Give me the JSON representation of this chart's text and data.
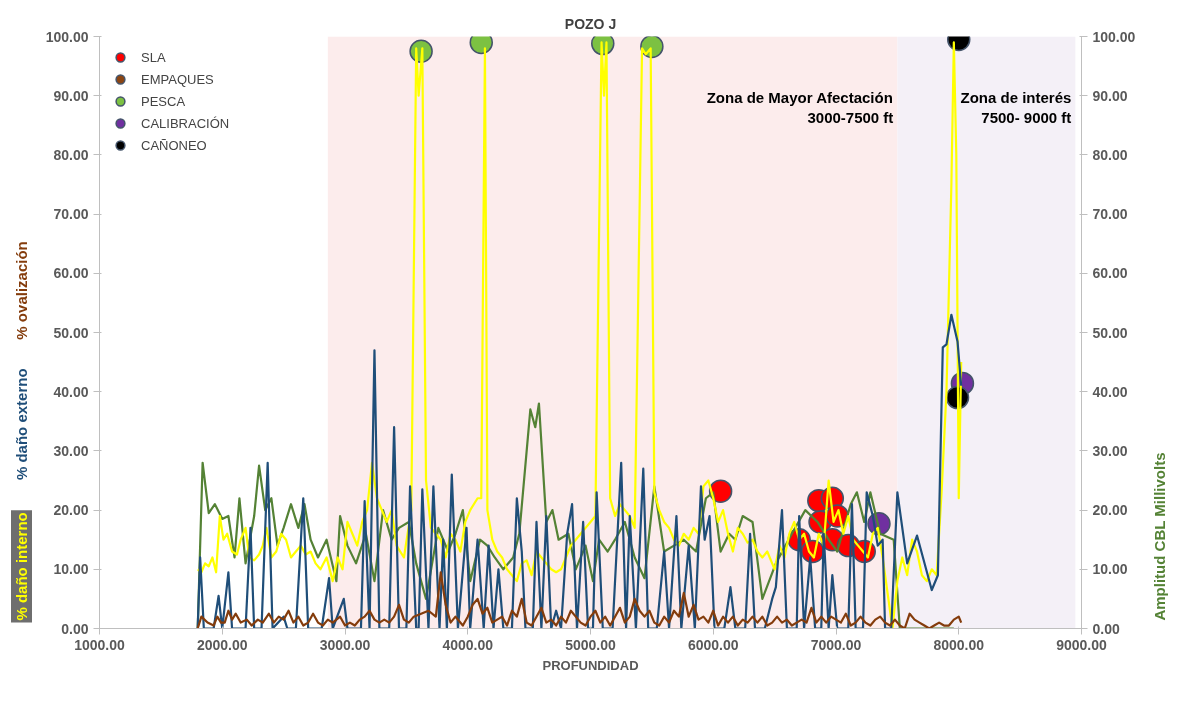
{
  "chart_data": {
    "type": "scatter",
    "title": "POZO J",
    "xlabel": "PROFUNDIDAD",
    "xlim": [
      1000,
      9000
    ],
    "ylim": [
      0,
      100
    ],
    "y2lim": [
      0,
      100
    ],
    "xticks": [
      {
        "value": 1000,
        "label": "1000.00"
      },
      {
        "value": 2000,
        "label": "2000.00"
      },
      {
        "value": 3000,
        "label": "3000.00"
      },
      {
        "value": 4000,
        "label": "4000.00"
      },
      {
        "value": 5000,
        "label": "5000.00"
      },
      {
        "value": 6000,
        "label": "6000.00"
      },
      {
        "value": 7000,
        "label": "7000.00"
      },
      {
        "value": 8000,
        "label": "8000.00"
      },
      {
        "value": 9000,
        "label": "9000.00"
      }
    ],
    "yticks": [
      {
        "value": 0,
        "label": "0.00"
      },
      {
        "value": 10,
        "label": "10.00"
      },
      {
        "value": 20,
        "label": "20.00"
      },
      {
        "value": 30,
        "label": "30.00"
      },
      {
        "value": 40,
        "label": "40.00"
      },
      {
        "value": 50,
        "label": "50.00"
      },
      {
        "value": 60,
        "label": "60.00"
      },
      {
        "value": 70,
        "label": "70.00"
      },
      {
        "value": 80,
        "label": "80.00"
      },
      {
        "value": 90,
        "label": "90.00"
      },
      {
        "value": 100,
        "label": "100.00"
      }
    ],
    "y2ticks": [
      {
        "value": 0,
        "label": "0.00"
      },
      {
        "value": 10,
        "label": "10.00"
      },
      {
        "value": 20,
        "label": "20.00"
      },
      {
        "value": 30,
        "label": "30.00"
      },
      {
        "value": 40,
        "label": "40.00"
      },
      {
        "value": 50,
        "label": "50.00"
      },
      {
        "value": 60,
        "label": "60.00"
      },
      {
        "value": 70,
        "label": "70.00"
      },
      {
        "value": 80,
        "label": "80.00"
      },
      {
        "value": 90,
        "label": "90.00"
      },
      {
        "value": 100,
        "label": "100.00"
      }
    ],
    "grid": false,
    "legend": "top left",
    "line_style": "solid",
    "bands": [
      {
        "axis": "x",
        "from": 2860,
        "to": 7500,
        "label": "Zona de Mayor Afectación\n3000-7500 ft",
        "color": "#fcecec"
      },
      {
        "axis": "x",
        "from": 7500,
        "to": 8950,
        "label": "Zona de interés\n7500- 9000 ft",
        "color": "#f4f0f7"
      }
    ],
    "series": [
      {
        "name": "Amplitud CBL  Millivolts",
        "type": "line",
        "axis": "y2",
        "color": "#548235",
        "x": [
          1800,
          1840,
          1890,
          1940,
          2000,
          2050,
          2100,
          2140,
          2190,
          2260,
          2300,
          2350,
          2400,
          2450,
          2500,
          2560,
          2620,
          2670,
          2720,
          2780,
          2850,
          2930,
          2960,
          3020,
          3090,
          3170,
          3240,
          3310,
          3380,
          3440,
          3520,
          3580,
          3660,
          3760,
          3840,
          3900,
          3960,
          4020,
          4100,
          4160,
          4220,
          4290,
          4370,
          4420,
          4510,
          4550,
          4580,
          4640,
          4690,
          4740,
          4820,
          4880,
          4960,
          5020,
          5070,
          5140,
          5200,
          5280,
          5360,
          5440,
          5520,
          5600,
          5680,
          5760,
          5860,
          5940,
          6000,
          6060,
          6130,
          6180,
          6240,
          6320,
          6400,
          6510,
          6640,
          6750,
          6850,
          6940,
          7010,
          7120,
          7170,
          7230,
          7280,
          7360,
          7470,
          7520,
          7960
        ],
        "values": [
          0,
          28,
          19.5,
          21,
          18.5,
          19,
          12,
          22,
          11,
          19,
          27.5,
          20,
          22,
          14,
          17,
          21,
          17,
          21,
          15,
          12,
          15,
          8,
          19,
          14,
          11,
          16,
          8,
          20,
          15,
          17,
          18,
          11,
          5,
          17,
          13,
          16,
          20,
          8,
          15,
          14,
          12,
          10,
          12,
          16,
          37,
          34,
          38,
          18,
          20,
          15,
          16,
          10,
          14,
          8,
          15,
          13,
          15,
          18,
          12,
          8.5,
          24,
          13,
          14,
          15,
          13,
          22,
          23,
          13,
          16,
          15,
          19,
          18,
          5,
          11,
          16,
          20,
          18,
          15,
          13,
          21,
          23,
          18,
          23,
          16,
          15,
          0,
          0
        ]
      },
      {
        "name": "% daño interno",
        "type": "line",
        "color": "#ffff00",
        "x": [
          1800,
          1830,
          1860,
          1890,
          1920,
          1950,
          1980,
          2010,
          2040,
          2080,
          2120,
          2150,
          2190,
          2220,
          2260,
          2300,
          2330,
          2360,
          2400,
          2440,
          2480,
          2520,
          2560,
          2600,
          2640,
          2680,
          2720,
          2760,
          2800,
          2850,
          2900,
          2940,
          2980,
          3020,
          3060,
          3100,
          3140,
          3180,
          3220,
          3260,
          3300,
          3340,
          3380,
          3420,
          3480,
          3540,
          3580,
          3600,
          3630,
          3660,
          3700,
          3740,
          3780,
          3820,
          3860,
          3900,
          3940,
          3980,
          4020,
          4080,
          4110,
          4140,
          4160,
          4200,
          4240,
          4280,
          4320,
          4360,
          4400,
          4440,
          4480,
          4520,
          4560,
          4600,
          4640,
          4680,
          4720,
          4760,
          4800,
          4840,
          4880,
          4920,
          4960,
          5000,
          5040,
          5090,
          5110,
          5130,
          5160,
          5200,
          5240,
          5280,
          5320,
          5360,
          5420,
          5450,
          5490,
          5520,
          5560,
          5600,
          5640,
          5680,
          5720,
          5760,
          5800,
          5840,
          5880,
          5920,
          5960,
          6000,
          6040,
          6080,
          6120,
          6160,
          6200,
          6240,
          6280,
          6320,
          6360,
          6400,
          6440,
          6500,
          6540,
          6580,
          6620,
          6660,
          6700,
          6740,
          6780,
          6820,
          6860,
          6900,
          6940,
          6980,
          7020,
          7060,
          7100,
          7140,
          7180,
          7220,
          7260,
          7300,
          7340,
          7380,
          7420,
          7460,
          7500,
          7540,
          7580,
          7620,
          7660,
          7700,
          7740,
          7780,
          7820,
          7860,
          7900,
          7940,
          7960,
          7980,
          8000,
          8020
        ],
        "values": [
          10,
          9.5,
          11,
          10.5,
          12,
          9.5,
          19,
          15,
          16,
          13,
          12.5,
          15,
          17,
          12,
          11.5,
          12.5,
          14,
          17,
          12,
          13,
          16,
          15,
          12,
          13,
          14,
          12.5,
          13,
          11,
          10,
          12,
          8,
          12,
          10,
          18,
          16,
          14,
          18,
          20,
          28,
          22,
          20,
          18,
          20,
          14,
          12,
          20,
          98,
          90,
          98,
          25,
          17,
          16,
          15,
          12,
          16,
          15,
          13,
          18,
          20,
          22,
          22,
          98,
          20,
          15,
          13,
          12,
          10,
          9,
          8,
          11,
          11.5,
          9,
          13,
          12,
          11,
          10,
          9.5,
          10,
          12,
          14,
          15,
          16,
          17,
          18,
          19,
          99,
          90,
          99,
          22,
          19,
          21,
          20,
          19,
          17,
          98,
          97,
          98,
          23,
          20,
          18,
          17,
          15,
          14,
          16,
          15,
          17,
          16,
          24,
          25,
          22,
          18,
          20,
          16,
          13,
          17,
          16,
          14.5,
          15,
          13,
          12,
          13,
          10,
          14,
          12,
          16,
          18,
          15,
          16,
          13,
          12,
          16,
          14,
          25,
          18,
          20,
          16,
          19,
          15,
          14,
          13,
          12,
          16,
          17,
          12,
          6,
          0,
          8,
          12,
          9,
          15,
          13,
          9,
          8,
          10,
          9,
          23,
          40,
          75,
          99,
          80,
          22,
          45
        ]
      },
      {
        "name": "% daño externo",
        "type": "line",
        "color": "#1f4e79",
        "x": [
          1800,
          1820,
          1850,
          1930,
          1970,
          2000,
          2050,
          2080,
          2190,
          2230,
          2260,
          2320,
          2370,
          2410,
          2500,
          2530,
          2600,
          2660,
          2700,
          2810,
          2870,
          2900,
          2990,
          3020,
          3130,
          3160,
          3200,
          3240,
          3280,
          3360,
          3400,
          3440,
          3500,
          3530,
          3580,
          3600,
          3630,
          3680,
          3720,
          3770,
          3800,
          3830,
          3870,
          3920,
          3990,
          4020,
          4080,
          4130,
          4170,
          4210,
          4250,
          4290,
          4360,
          4400,
          4440,
          4470,
          4530,
          4560,
          4600,
          4640,
          4680,
          4720,
          4760,
          4810,
          4850,
          4890,
          4940,
          4980,
          5020,
          5050,
          5100,
          5180,
          5250,
          5290,
          5320,
          5370,
          5430,
          5470,
          5540,
          5600,
          5640,
          5700,
          5740,
          5800,
          5850,
          5900,
          5930,
          5970,
          6010,
          6090,
          6140,
          6180,
          6260,
          6300,
          6340,
          6420,
          6480,
          6510,
          6560,
          6600,
          6680,
          6700,
          6740,
          6790,
          6830,
          6880,
          6900,
          6940,
          6970,
          7010,
          7100,
          7130,
          7160,
          7220,
          7250,
          7300,
          7340,
          7380,
          7400,
          7450,
          7500,
          7580,
          7660,
          7780,
          7830,
          7870,
          7900,
          7940,
          7990,
          8020
        ],
        "values": [
          0,
          12,
          0,
          0,
          5.5,
          0,
          9.5,
          0,
          0,
          17,
          0,
          0,
          28,
          0,
          2,
          0,
          0,
          22,
          0,
          0,
          8.5,
          0,
          5,
          0,
          0,
          21.5,
          0,
          47,
          0,
          0,
          34,
          0,
          0,
          24,
          0,
          0,
          23.5,
          0,
          24,
          0,
          15,
          0,
          26,
          0,
          17,
          0,
          15,
          0,
          14,
          0,
          10,
          0,
          0,
          22,
          13,
          0,
          0,
          18,
          0,
          19,
          0,
          3,
          0,
          16,
          21,
          0,
          18,
          0,
          0,
          23,
          0,
          0,
          28,
          0,
          19,
          0,
          27,
          0,
          0,
          13,
          0,
          19,
          0,
          14,
          0,
          24,
          15,
          19,
          0,
          0,
          7,
          0,
          0,
          16,
          0,
          0,
          5,
          7,
          20,
          0,
          0,
          19,
          0,
          12,
          0,
          0,
          16,
          0,
          9,
          0,
          0,
          21,
          0,
          0,
          23,
          19,
          14,
          15,
          0,
          0,
          23,
          11,
          15.7,
          6.5,
          9,
          47.5,
          48,
          53,
          48.5,
          41
        ]
      },
      {
        "name": "% ovalización",
        "type": "line",
        "color": "#843c0c",
        "x": [
          1800,
          1830,
          1880,
          1930,
          1960,
          1990,
          2020,
          2050,
          2080,
          2110,
          2150,
          2200,
          2240,
          2290,
          2330,
          2380,
          2420,
          2460,
          2500,
          2540,
          2580,
          2620,
          2660,
          2700,
          2740,
          2780,
          2820,
          2860,
          2900,
          2960,
          3000,
          3040,
          3080,
          3120,
          3160,
          3200,
          3240,
          3280,
          3320,
          3360,
          3400,
          3440,
          3480,
          3520,
          3560,
          3620,
          3680,
          3740,
          3780,
          3820,
          3860,
          3900,
          3960,
          4000,
          4040,
          4080,
          4120,
          4160,
          4200,
          4240,
          4280,
          4320,
          4360,
          4400,
          4440,
          4480,
          4520,
          4560,
          4600,
          4640,
          4680,
          4720,
          4760,
          4800,
          4840,
          4880,
          4920,
          4960,
          5000,
          5040,
          5080,
          5120,
          5160,
          5200,
          5240,
          5280,
          5320,
          5360,
          5400,
          5440,
          5480,
          5520,
          5560,
          5600,
          5640,
          5680,
          5720,
          5760,
          5800,
          5840,
          5880,
          5920,
          5960,
          6000,
          6040,
          6080,
          6120,
          6160,
          6200,
          6240,
          6280,
          6320,
          6360,
          6400,
          6440,
          6480,
          6520,
          6560,
          6600,
          6640,
          6680,
          6720,
          6760,
          6800,
          6840,
          6880,
          6920,
          6960,
          7000,
          7040,
          7080,
          7120,
          7160,
          7200,
          7240,
          7280,
          7320,
          7360,
          7400,
          7440,
          7480,
          7520,
          7560,
          7600,
          7640,
          7680,
          7720,
          7760,
          7800,
          7840,
          7880,
          7920,
          7960,
          8000,
          8020
        ],
        "values": [
          0,
          2,
          1,
          0.5,
          2,
          1,
          1,
          3,
          1.5,
          2.5,
          1,
          1.5,
          0.5,
          1.5,
          1,
          2.5,
          1,
          2,
          1.5,
          3,
          1,
          2,
          0.5,
          1,
          2.5,
          1,
          0.5,
          1.5,
          1,
          2,
          0.5,
          1,
          0.5,
          1.5,
          2,
          3,
          1.5,
          1,
          1.5,
          1,
          2,
          4,
          1.5,
          1,
          2,
          2.5,
          3,
          2,
          9.5,
          4,
          1,
          2,
          0.5,
          2,
          4,
          5,
          2.5,
          3.5,
          1,
          1.5,
          2,
          0.5,
          3,
          2,
          5,
          1,
          0.5,
          2,
          3.5,
          1,
          1.5,
          0.5,
          2,
          1,
          3,
          2,
          1,
          0.5,
          2,
          3,
          1,
          2,
          0.5,
          2,
          3.5,
          1,
          2,
          5,
          3,
          2,
          3,
          1,
          0.5,
          2,
          1,
          3,
          2,
          6,
          2,
          4,
          1.5,
          2,
          1,
          3,
          0.5,
          2,
          1,
          2,
          0.5,
          1.5,
          1,
          2,
          1,
          2,
          0.5,
          1,
          2,
          1,
          1.5,
          0.5,
          1,
          1.5,
          1,
          3.5,
          1,
          2,
          1,
          2,
          1.5,
          1,
          2.5,
          0.5,
          1,
          2,
          1,
          0.5,
          1.5,
          2,
          1,
          0.5,
          1.5,
          0.5,
          0,
          2.5,
          1.5,
          1,
          0.5,
          0,
          0.5,
          1,
          0.5,
          0.5,
          1.5,
          2,
          1
        ]
      },
      {
        "name": "SLA",
        "marker": "circle",
        "color": "#ff0000",
        "x": [
          6060,
          6860,
          6970,
          6870,
          7010,
          6700,
          6810,
          6970,
          7100,
          7230
        ],
        "values": [
          23.2,
          21.6,
          22,
          18,
          19,
          15,
          13,
          15,
          14,
          13
        ]
      },
      {
        "name": "EMPAQUES",
        "marker": "circle",
        "color": "#8b4513"
      },
      {
        "name": "PESCA",
        "marker": "circle",
        "color": "#7cc142",
        "x": [
          3620,
          4110,
          5100,
          5500
        ],
        "values": [
          97.5,
          99,
          98.8,
          98.3
        ]
      },
      {
        "name": "CALIBRACIÓN",
        "marker": "circle",
        "color": "#7030a0",
        "x": [
          7350,
          8030
        ],
        "values": [
          17.7,
          41.4
        ]
      },
      {
        "name": "CAÑONEO",
        "marker": "circle",
        "color": "#000000",
        "x": [
          8000,
          7990
        ],
        "values": [
          99.5,
          39
        ]
      }
    ]
  }
}
